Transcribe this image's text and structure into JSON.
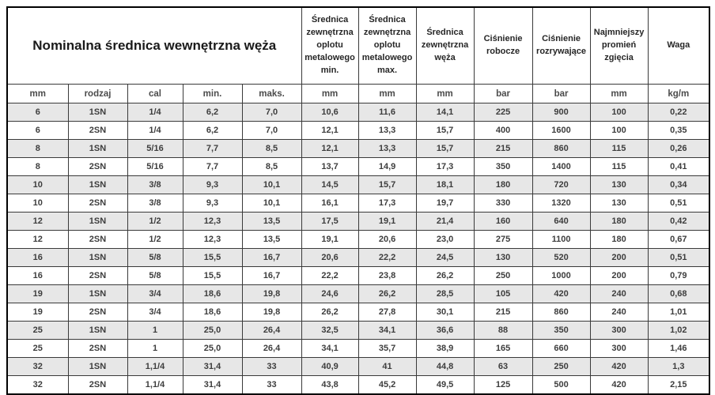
{
  "table": {
    "group_title": "Nominalna średnica wewnętrzna węża",
    "column_headers": [
      "Średnica zewnętrzna oplotu metalowego min.",
      "Średnica zewnętrzna oplotu metalowego max.",
      "Średnica zewnętrzna węża",
      "Ciśnienie robocze",
      "Ciśnienie rozrywające",
      "Najmniejszy promień zgięcia",
      "Waga"
    ],
    "unit_row": [
      "mm",
      "rodzaj",
      "cal",
      "min.",
      "maks.",
      "mm",
      "mm",
      "mm",
      "bar",
      "bar",
      "mm",
      "kg/m"
    ],
    "rows": [
      [
        "6",
        "1SN",
        "1/4",
        "6,2",
        "7,0",
        "10,6",
        "11,6",
        "14,1",
        "225",
        "900",
        "100",
        "0,22"
      ],
      [
        "6",
        "2SN",
        "1/4",
        "6,2",
        "7,0",
        "12,1",
        "13,3",
        "15,7",
        "400",
        "1600",
        "100",
        "0,35"
      ],
      [
        "8",
        "1SN",
        "5/16",
        "7,7",
        "8,5",
        "12,1",
        "13,3",
        "15,7",
        "215",
        "860",
        "115",
        "0,26"
      ],
      [
        "8",
        "2SN",
        "5/16",
        "7,7",
        "8,5",
        "13,7",
        "14,9",
        "17,3",
        "350",
        "1400",
        "115",
        "0,41"
      ],
      [
        "10",
        "1SN",
        "3/8",
        "9,3",
        "10,1",
        "14,5",
        "15,7",
        "18,1",
        "180",
        "720",
        "130",
        "0,34"
      ],
      [
        "10",
        "2SN",
        "3/8",
        "9,3",
        "10,1",
        "16,1",
        "17,3",
        "19,7",
        "330",
        "1320",
        "130",
        "0,51"
      ],
      [
        "12",
        "1SN",
        "1/2",
        "12,3",
        "13,5",
        "17,5",
        "19,1",
        "21,4",
        "160",
        "640",
        "180",
        "0,42"
      ],
      [
        "12",
        "2SN",
        "1/2",
        "12,3",
        "13,5",
        "19,1",
        "20,6",
        "23,0",
        "275",
        "1100",
        "180",
        "0,67"
      ],
      [
        "16",
        "1SN",
        "5/8",
        "15,5",
        "16,7",
        "20,6",
        "22,2",
        "24,5",
        "130",
        "520",
        "200",
        "0,51"
      ],
      [
        "16",
        "2SN",
        "5/8",
        "15,5",
        "16,7",
        "22,2",
        "23,8",
        "26,2",
        "250",
        "1000",
        "200",
        "0,79"
      ],
      [
        "19",
        "1SN",
        "3/4",
        "18,6",
        "19,8",
        "24,6",
        "26,2",
        "28,5",
        "105",
        "420",
        "240",
        "0,68"
      ],
      [
        "19",
        "2SN",
        "3/4",
        "18,6",
        "19,8",
        "26,2",
        "27,8",
        "30,1",
        "215",
        "860",
        "240",
        "1,01"
      ],
      [
        "25",
        "1SN",
        "1",
        "25,0",
        "26,4",
        "32,5",
        "34,1",
        "36,6",
        "88",
        "350",
        "300",
        "1,02"
      ],
      [
        "25",
        "2SN",
        "1",
        "25,0",
        "26,4",
        "34,1",
        "35,7",
        "38,9",
        "165",
        "660",
        "300",
        "1,46"
      ],
      [
        "32",
        "1SN",
        "1,1/4",
        "31,4",
        "33",
        "40,9",
        "41",
        "44,8",
        "63",
        "250",
        "420",
        "1,3"
      ],
      [
        "32",
        "2SN",
        "1,1/4",
        "31,4",
        "33",
        "43,8",
        "45,2",
        "49,5",
        "125",
        "500",
        "420",
        "2,15"
      ]
    ]
  },
  "colors": {
    "row_alt_background": "#e7e7e7",
    "border": "#000000",
    "text": "#3d3d3d"
  }
}
